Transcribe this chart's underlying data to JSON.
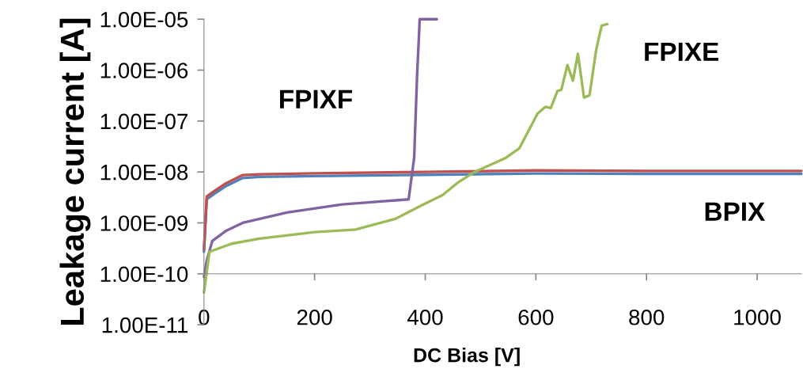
{
  "chart_data": {
    "type": "line",
    "xlabel": "DC Bias [V]",
    "ylabel": "Leakage current [A]",
    "log": "y",
    "grid": false,
    "marker": "none",
    "line_style": "solid",
    "xlim": [
      0,
      1080
    ],
    "xticks": [
      0,
      200,
      400,
      600,
      800,
      1000
    ],
    "ylim": [
      1e-11,
      1e-05
    ],
    "yticks": [
      {
        "value": 1e-11,
        "label": "1.00E-11"
      },
      {
        "value": 1e-10,
        "label": "1.00E-10"
      },
      {
        "value": 1e-09,
        "label": "1.00E-09"
      },
      {
        "value": 1e-08,
        "label": "1.00E-08"
      },
      {
        "value": 1e-07,
        "label": "1.00E-07"
      },
      {
        "value": 1e-06,
        "label": "1.00E-06"
      },
      {
        "value": 1e-05,
        "label": "1.00E-05"
      }
    ],
    "series": [
      {
        "color": "#4f81bd",
        "x": [
          0,
          5,
          20,
          40,
          70,
          100,
          200,
          400,
          600,
          800,
          1080
        ],
        "values": [
          2.7e-10,
          2.9e-09,
          3.8e-09,
          5.3e-09,
          7.6e-09,
          8e-09,
          8.3e-09,
          8.8e-09,
          9.3e-09,
          9.2e-09,
          9.2e-09
        ]
      },
      {
        "color": "#c0504d",
        "x": [
          0,
          5,
          20,
          40,
          70,
          100,
          200,
          400,
          600,
          800,
          1080
        ],
        "values": [
          3e-10,
          3.3e-09,
          4.3e-09,
          6e-09,
          8.7e-09,
          9e-09,
          9.4e-09,
          1e-08,
          1.07e-08,
          1.05e-08,
          1.05e-08
        ]
      },
      {
        "color": "#8064a2",
        "x": [
          0,
          5,
          15,
          40,
          70,
          150,
          250,
          370,
          380,
          385,
          390,
          421
        ],
        "values": [
          8.7e-11,
          1.8e-10,
          4.4e-10,
          7e-10,
          1e-09,
          1.6e-09,
          2.3e-09,
          2.9e-09,
          1.9e-08,
          6.6e-07,
          1e-05,
          1e-05
        ]
      },
      {
        "color": "#9bbb59",
        "x": [
          0,
          10,
          50,
          100,
          200,
          274,
          346,
          393,
          431,
          460,
          489,
          546,
          570,
          603,
          617,
          627,
          639,
          646,
          657,
          667,
          676,
          687,
          697,
          709,
          719,
          729
        ],
        "values": [
          4.3e-11,
          2.7e-10,
          3.9e-10,
          4.9e-10,
          6.6e-10,
          7.4e-10,
          1.2e-09,
          2.2e-09,
          3.5e-09,
          6.3e-09,
          1e-08,
          1.9e-08,
          2.9e-08,
          1.4e-07,
          1.9e-07,
          1.8e-07,
          3.9e-07,
          4.1e-07,
          1.26e-06,
          6.2e-07,
          2.1e-06,
          2.9e-07,
          3.2e-07,
          2.5e-06,
          7.5e-06,
          8e-06
        ]
      }
    ],
    "annotations": [
      "FPIXF",
      "FPIXE",
      "BPIX"
    ]
  }
}
